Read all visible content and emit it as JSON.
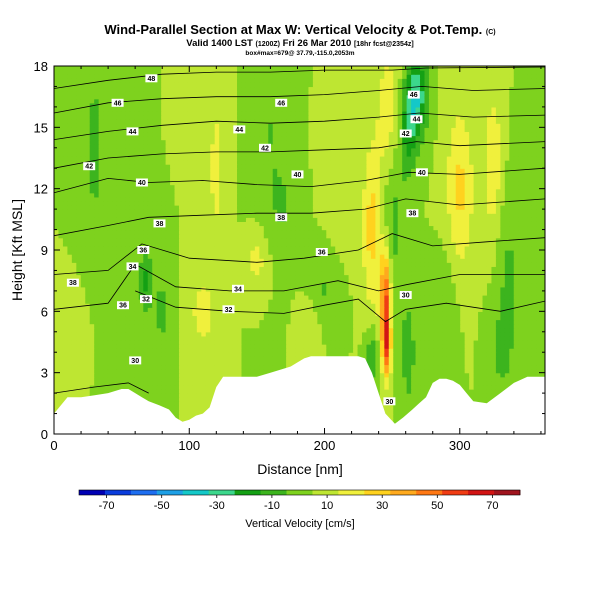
{
  "header": {
    "title": "Wind-Parallel Section at Max W: Vertical Velocity & Pot.Temp.",
    "title_mark": "(C)",
    "valid_line": "Valid 1400 LST",
    "valid_utc": "(1200Z)",
    "valid_date": "Fri 26 Mar 2010",
    "valid_fcst": "[18hr fcst@2354z]",
    "sub_line": "box#max=679@ 37.79,-115.0,2053m"
  },
  "chart_data": {
    "type": "heatmap",
    "title": "Wind-Parallel Section at Max W: Vertical Velocity & Pot.Temp.",
    "xlabel": "Distance [nm]",
    "ylabel": "Height [Kft MSL]",
    "xlim": [
      0,
      363
    ],
    "ylim": [
      0,
      18
    ],
    "xticks": [
      0,
      100,
      200,
      300
    ],
    "yticks": [
      0,
      3,
      6,
      9,
      12,
      15,
      18
    ],
    "grid": false,
    "colorbar": {
      "label": "Vertical Velocity [cm/s]",
      "tick_labels": [
        "-70",
        "-50",
        "-30",
        "-10",
        "10",
        "30",
        "50",
        "70"
      ],
      "range": [
        -80,
        80
      ],
      "step": 10,
      "colors": [
        "#0000b4",
        "#0a3cdc",
        "#1e6ef0",
        "#1ea0e6",
        "#14c8c8",
        "#3cd78c",
        "#14a014",
        "#3cb41e",
        "#7ed21e",
        "#bee632",
        "#f0f03c",
        "#ffd21e",
        "#ffaa1e",
        "#ff7814",
        "#f03c14",
        "#d21414",
        "#a0141e"
      ]
    },
    "terrain_kft": [
      [
        0,
        1.0
      ],
      [
        10,
        1.8
      ],
      [
        20,
        1.8
      ],
      [
        30,
        1.9
      ],
      [
        40,
        2.0
      ],
      [
        50,
        2.2
      ],
      [
        55,
        2.2
      ],
      [
        60,
        2.0
      ],
      [
        65,
        1.8
      ],
      [
        70,
        1.6
      ],
      [
        78,
        1.4
      ],
      [
        85,
        1.2
      ],
      [
        90,
        0.8
      ],
      [
        95,
        0.6
      ],
      [
        100,
        0.7
      ],
      [
        105,
        0.9
      ],
      [
        110,
        1.0
      ],
      [
        115,
        1.3
      ],
      [
        120,
        2.3
      ],
      [
        125,
        2.8
      ],
      [
        130,
        2.8
      ],
      [
        140,
        2.8
      ],
      [
        150,
        2.8
      ],
      [
        160,
        3.0
      ],
      [
        170,
        3.2
      ],
      [
        175,
        3.3
      ],
      [
        180,
        3.5
      ],
      [
        185,
        3.7
      ],
      [
        190,
        3.8
      ],
      [
        200,
        3.8
      ],
      [
        210,
        3.8
      ],
      [
        220,
        3.8
      ],
      [
        225,
        3.8
      ],
      [
        230,
        3.7
      ],
      [
        235,
        3.0
      ],
      [
        240,
        2.0
      ],
      [
        245,
        1.0
      ],
      [
        252,
        0.5
      ],
      [
        258,
        0.8
      ],
      [
        265,
        1.2
      ],
      [
        270,
        1.5
      ],
      [
        275,
        1.8
      ],
      [
        280,
        2.5
      ],
      [
        285,
        2.7
      ],
      [
        290,
        2.7
      ],
      [
        295,
        2.6
      ],
      [
        300,
        2.4
      ],
      [
        305,
        2.0
      ],
      [
        310,
        1.6
      ],
      [
        320,
        1.5
      ],
      [
        330,
        2.0
      ],
      [
        340,
        2.5
      ],
      [
        350,
        2.8
      ],
      [
        363,
        2.8
      ]
    ],
    "features": [
      {
        "x": 250,
        "y": 12.5,
        "sx": 9,
        "sy": 5,
        "w": -24
      },
      {
        "x": 268,
        "y": 16.5,
        "sx": 8,
        "sy": 2.0,
        "w": -40
      },
      {
        "x": 262,
        "y": 14.5,
        "sx": 6,
        "sy": 2.0,
        "w": -20
      },
      {
        "x": 248,
        "y": 15,
        "sx": 9,
        "sy": 4,
        "w": 30
      },
      {
        "x": 235,
        "y": 10,
        "sx": 7,
        "sy": 4,
        "w": 24
      },
      {
        "x": 245,
        "y": 6.5,
        "sx": 4,
        "sy": 2.6,
        "w": 55
      },
      {
        "x": 246,
        "y": 4.2,
        "sx": 3,
        "sy": 1.5,
        "w": 38
      },
      {
        "x": 235,
        "y": 3.8,
        "sx": 5,
        "sy": 1.5,
        "w": -18
      },
      {
        "x": 262,
        "y": 4,
        "sx": 5,
        "sy": 2.5,
        "w": -18
      },
      {
        "x": 300,
        "y": 12,
        "sx": 10,
        "sy": 4,
        "w": 22
      },
      {
        "x": 325,
        "y": 13,
        "sx": 8,
        "sy": 4,
        "w": 18
      },
      {
        "x": 335,
        "y": 8,
        "sx": 10,
        "sy": 5,
        "w": -12
      },
      {
        "x": 290,
        "y": 6,
        "sx": 8,
        "sy": 3,
        "w": -10
      },
      {
        "x": 330,
        "y": 4,
        "sx": 9,
        "sy": 2,
        "w": -9
      },
      {
        "x": 68,
        "y": 7.5,
        "sx": 5,
        "sy": 1.6,
        "w": -22
      },
      {
        "x": 80,
        "y": 6.0,
        "sx": 6,
        "sy": 1.6,
        "w": -16
      },
      {
        "x": 30,
        "y": 14,
        "sx": 10,
        "sy": 6,
        "w": -12
      },
      {
        "x": 160,
        "y": 15,
        "sx": 14,
        "sy": 5,
        "w": -10
      },
      {
        "x": 170,
        "y": 11,
        "sx": 10,
        "sy": 2,
        "w": -8
      },
      {
        "x": 110,
        "y": 6,
        "sx": 8,
        "sy": 1.5,
        "w": 18
      },
      {
        "x": 150,
        "y": 8.5,
        "sx": 8,
        "sy": 1.5,
        "w": 14
      },
      {
        "x": 200,
        "y": 7,
        "sx": 10,
        "sy": 2,
        "w": -11
      },
      {
        "x": 120,
        "y": 13,
        "sx": 8,
        "sy": 5,
        "w": 12
      },
      {
        "x": 210,
        "y": 14,
        "sx": 10,
        "sy": 4,
        "w": 10
      },
      {
        "x": 15,
        "y": 5,
        "sx": 10,
        "sy": 2,
        "w": 8
      },
      {
        "x": 190,
        "y": 5,
        "sx": 8,
        "sy": 1.5,
        "w": 10
      }
    ],
    "isentropes": [
      {
        "label": "30",
        "points": [
          [
            0,
            2.0
          ],
          [
            30,
            2.3
          ],
          [
            55,
            2.5
          ],
          [
            70,
            2.0
          ]
        ]
      },
      {
        "label": "32",
        "points": [
          [
            60,
            7.0
          ],
          [
            90,
            6.2
          ],
          [
            130,
            6.0
          ],
          [
            170,
            5.9
          ],
          [
            200,
            6.3
          ],
          [
            225,
            6.6
          ],
          [
            245,
            5.5
          ],
          [
            260,
            6.1
          ],
          [
            290,
            6.4
          ],
          [
            330,
            6.0
          ],
          [
            363,
            6.5
          ]
        ]
      },
      {
        "label": "34",
        "points": [
          [
            0,
            6.1
          ],
          [
            40,
            6.4
          ],
          [
            60,
            8.3
          ],
          [
            90,
            7.2
          ],
          [
            130,
            7.0
          ],
          [
            170,
            7.0
          ],
          [
            210,
            7.5
          ],
          [
            240,
            7.0
          ],
          [
            260,
            7.3
          ],
          [
            300,
            7.8
          ],
          [
            363,
            7.8
          ]
        ]
      },
      {
        "label": "36",
        "points": [
          [
            0,
            7.8
          ],
          [
            40,
            8.0
          ],
          [
            65,
            9.3
          ],
          [
            100,
            8.6
          ],
          [
            150,
            8.4
          ],
          [
            185,
            8.6
          ],
          [
            225,
            9.0
          ],
          [
            250,
            9.8
          ],
          [
            280,
            9.2
          ],
          [
            320,
            9.4
          ],
          [
            363,
            9.6
          ]
        ]
      },
      {
        "label": "38",
        "points": [
          [
            0,
            9.7
          ],
          [
            40,
            10.2
          ],
          [
            70,
            10.6
          ],
          [
            110,
            10.7
          ],
          [
            150,
            10.8
          ],
          [
            190,
            10.8
          ],
          [
            230,
            11.0
          ],
          [
            260,
            11.5
          ],
          [
            300,
            11.2
          ],
          [
            363,
            11.5
          ]
        ]
      },
      {
        "label": "40",
        "points": [
          [
            0,
            11.8
          ],
          [
            40,
            12.5
          ],
          [
            70,
            12.3
          ],
          [
            110,
            12.4
          ],
          [
            150,
            12.2
          ],
          [
            190,
            12.1
          ],
          [
            230,
            12.4
          ],
          [
            262,
            12.8
          ],
          [
            300,
            12.7
          ],
          [
            363,
            13.0
          ]
        ]
      },
      {
        "label": "42",
        "points": [
          [
            0,
            13.0
          ],
          [
            40,
            13.5
          ],
          [
            80,
            13.7
          ],
          [
            120,
            13.8
          ],
          [
            160,
            13.8
          ],
          [
            200,
            13.9
          ],
          [
            240,
            14.0
          ],
          [
            268,
            14.3
          ],
          [
            300,
            14.1
          ],
          [
            363,
            14.3
          ]
        ]
      },
      {
        "label": "44",
        "points": [
          [
            0,
            14.4
          ],
          [
            40,
            14.8
          ],
          [
            80,
            15.1
          ],
          [
            120,
            15.3
          ],
          [
            160,
            15.2
          ],
          [
            200,
            15.3
          ],
          [
            240,
            15.5
          ],
          [
            270,
            15.7
          ],
          [
            310,
            15.5
          ],
          [
            363,
            15.6
          ]
        ]
      },
      {
        "label": "46",
        "points": [
          [
            0,
            15.7
          ],
          [
            40,
            16.2
          ],
          [
            80,
            16.4
          ],
          [
            120,
            16.5
          ],
          [
            160,
            16.5
          ],
          [
            200,
            16.6
          ],
          [
            240,
            16.8
          ],
          [
            272,
            17.0
          ],
          [
            310,
            16.8
          ],
          [
            363,
            16.9
          ]
        ]
      },
      {
        "label": "48",
        "points": [
          [
            0,
            16.9
          ],
          [
            40,
            17.3
          ],
          [
            80,
            17.6
          ],
          [
            120,
            17.7
          ],
          [
            160,
            17.7
          ],
          [
            200,
            17.8
          ],
          [
            250,
            17.8
          ],
          [
            275,
            17.9
          ],
          [
            363,
            17.95
          ]
        ]
      }
    ],
    "contour_labels": [
      {
        "text": "48",
        "x": 72,
        "y": 17.4
      },
      {
        "text": "46",
        "x": 47,
        "y": 16.2
      },
      {
        "text": "46",
        "x": 168,
        "y": 16.2
      },
      {
        "text": "46",
        "x": 266,
        "y": 16.6
      },
      {
        "text": "44",
        "x": 58,
        "y": 14.8
      },
      {
        "text": "44",
        "x": 137,
        "y": 14.9
      },
      {
        "text": "44",
        "x": 268,
        "y": 15.4
      },
      {
        "text": "42",
        "x": 26,
        "y": 13.1
      },
      {
        "text": "42",
        "x": 156,
        "y": 14.0
      },
      {
        "text": "42",
        "x": 260,
        "y": 14.7
      },
      {
        "text": "40",
        "x": 65,
        "y": 12.3
      },
      {
        "text": "40",
        "x": 180,
        "y": 12.7
      },
      {
        "text": "40",
        "x": 272,
        "y": 12.8
      },
      {
        "text": "38",
        "x": 78,
        "y": 10.3
      },
      {
        "text": "38",
        "x": 168,
        "y": 10.6
      },
      {
        "text": "38",
        "x": 265,
        "y": 10.8
      },
      {
        "text": "36",
        "x": 66,
        "y": 9.0
      },
      {
        "text": "36",
        "x": 198,
        "y": 8.9
      },
      {
        "text": "34",
        "x": 58,
        "y": 8.2
      },
      {
        "text": "34",
        "x": 136,
        "y": 7.1
      },
      {
        "text": "38",
        "x": 14,
        "y": 7.4
      },
      {
        "text": "36",
        "x": 51,
        "y": 6.3
      },
      {
        "text": "32",
        "x": 68,
        "y": 6.6
      },
      {
        "text": "32",
        "x": 129,
        "y": 6.1
      },
      {
        "text": "30",
        "x": 260,
        "y": 6.8
      },
      {
        "text": "30",
        "x": 60,
        "y": 3.6
      },
      {
        "text": "30",
        "x": 248,
        "y": 1.6
      }
    ]
  }
}
